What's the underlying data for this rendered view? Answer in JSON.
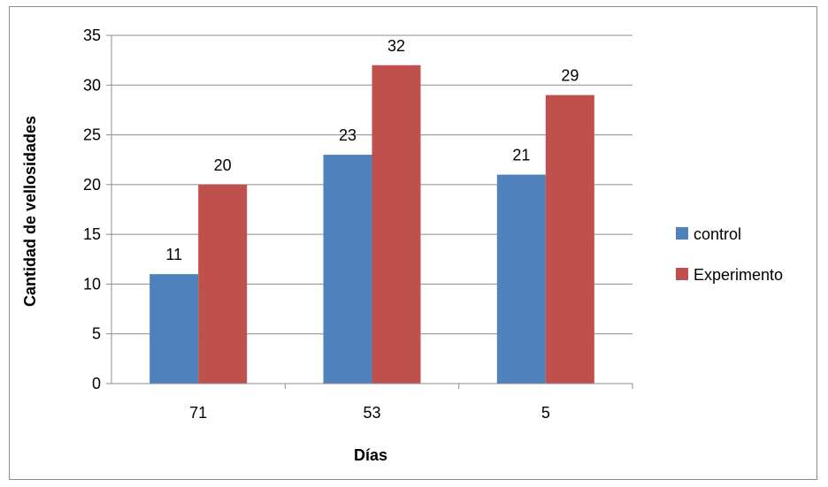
{
  "chart_data": {
    "type": "bar",
    "categories": [
      "71",
      "53",
      "5"
    ],
    "series": [
      {
        "name": "control",
        "values": [
          11,
          23,
          21
        ],
        "color": "#4f81bd"
      },
      {
        "name": "Experimento",
        "values": [
          20,
          32,
          29
        ],
        "color": "#c0504d"
      }
    ],
    "xlabel": "Días",
    "ylabel": "Cantidad  de vellosidades",
    "ylim": [
      0,
      35
    ],
    "yticks": [
      0,
      5,
      10,
      15,
      20,
      25,
      30,
      35
    ],
    "grid": true,
    "legend_position": "right"
  }
}
